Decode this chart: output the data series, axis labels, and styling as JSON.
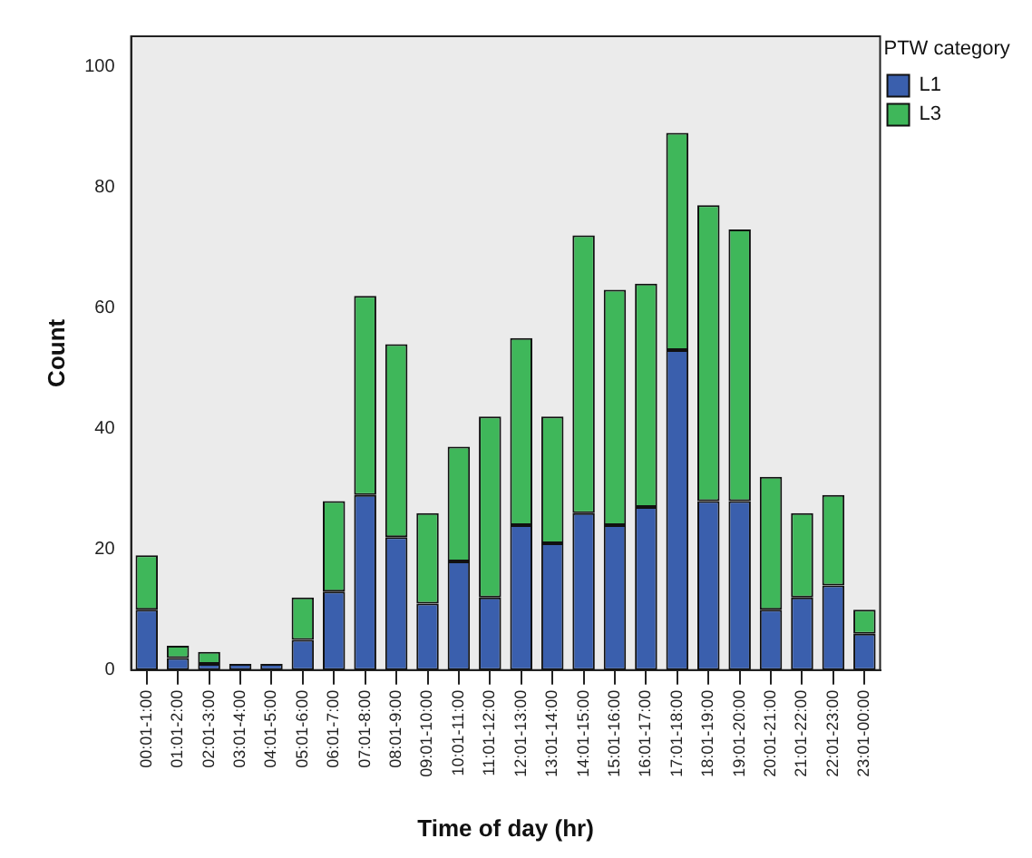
{
  "chart_data": {
    "type": "bar",
    "stacked": true,
    "xlabel": "Time of day (hr)",
    "ylabel": "Count",
    "legend_title": "PTW category",
    "legend": "top right",
    "grid": false,
    "categories": [
      "00:01-1:00",
      "01:01-2:00",
      "02:01-3:00",
      "03:01-4:00",
      "04:01-5:00",
      "05:01-6:00",
      "06:01-7:00",
      "07:01-8:00",
      "08:01-9:00",
      "09:01-10:00",
      "10:01-11:00",
      "11:01-12:00",
      "12:01-13:00",
      "13:01-14:00",
      "14:01-15:00",
      "15:01-16:00",
      "16:01-17:00",
      "17:01-18:00",
      "18:01-19:00",
      "19:01-20:00",
      "20:01-21:00",
      "21:01-22:00",
      "22:01-23:00",
      "23:01-00:00"
    ],
    "series": [
      {
        "name": "L1",
        "color": "#3a5fad",
        "values": [
          10,
          2,
          1,
          1,
          1,
          5,
          13,
          29,
          22,
          11,
          18,
          12,
          24,
          21,
          26,
          24,
          27,
          53,
          28,
          28,
          10,
          12,
          14,
          6
        ]
      },
      {
        "name": "L3",
        "color": "#3fb75a",
        "values": [
          9,
          2,
          2,
          0,
          0,
          7,
          15,
          33,
          32,
          15,
          19,
          30,
          31,
          21,
          46,
          39,
          37,
          36,
          49,
          45,
          22,
          14,
          15,
          4
        ]
      }
    ],
    "ylim": [
      0,
      105
    ],
    "yticks": [
      0,
      20,
      40,
      60,
      80,
      100
    ]
  }
}
